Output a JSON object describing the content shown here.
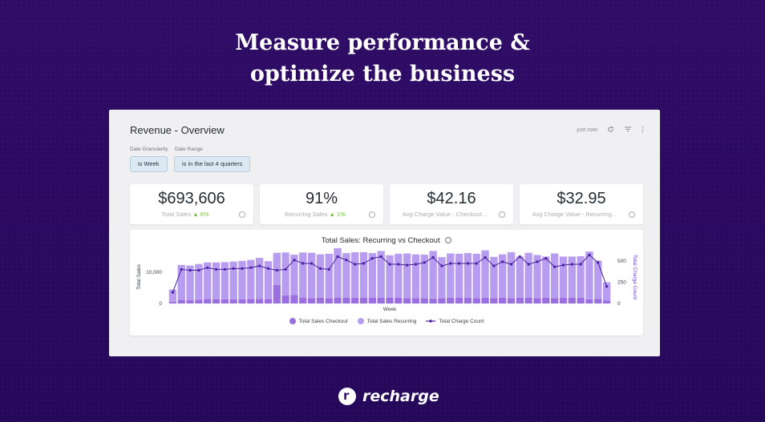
{
  "headline": {
    "line1": "Measure performance &",
    "line2": "optimize the business"
  },
  "dashboard": {
    "title": "Revenue - Overview",
    "last_updated": "just now",
    "filters": [
      {
        "label": "Date Granularity",
        "value": "is Week"
      },
      {
        "label": "Date Range",
        "value": "is in the last 4 quarters"
      }
    ]
  },
  "kpis": [
    {
      "value": "$693,606",
      "label": "Total Sales",
      "delta": "▲ 6%"
    },
    {
      "value": "91%",
      "label": "Recurring Sales",
      "delta": "▲ 1%"
    },
    {
      "value": "$42.16",
      "label": "Avg Charge Value - Checkout…",
      "delta": ""
    },
    {
      "value": "$32.95",
      "label": "Avg Charge Value - Recurring…",
      "delta": ""
    }
  ],
  "chart_data": {
    "type": "bar",
    "title": "Total Sales: Recurring vs Checkout",
    "xlabel": "Week",
    "ylabel": "Total Sales",
    "y2label": "Total Charge Count",
    "y_ticks": [
      "0",
      "10,000"
    ],
    "y2_ticks": [
      "0",
      "250",
      "500"
    ],
    "ylim": [
      0,
      17000
    ],
    "y2lim": [
      0,
      620
    ],
    "legend_position": "bottom-center",
    "colors": {
      "checkout": "#9b6fe0",
      "recurring": "#b89cf0",
      "count": "#4a1fa0"
    },
    "series": [
      {
        "name": "Total Sales Checkout",
        "values": [
          500,
          1200,
          1100,
          1200,
          1400,
          1300,
          1300,
          1300,
          1300,
          1400,
          1500,
          1400,
          6000,
          2600,
          2700,
          1800,
          1700,
          1800,
          1700,
          1900,
          1800,
          1800,
          1800,
          1900,
          1800,
          1800,
          1800,
          1700,
          1700,
          1700,
          1600,
          1700,
          1800,
          1900,
          1800,
          1700,
          1800,
          1700,
          1800,
          1700,
          1800,
          1800,
          1700,
          1900,
          1700,
          1800,
          1800,
          1800,
          1300,
          1500,
          900
        ]
      },
      {
        "name": "Total Sales Recurring",
        "values": [
          4000,
          11200,
          11100,
          11500,
          11800,
          11900,
          12000,
          12200,
          12400,
          12600,
          13200,
          12200,
          10300,
          13800,
          13000,
          14600,
          14600,
          14000,
          14300,
          15900,
          14400,
          14700,
          14700,
          14300,
          15100,
          13700,
          14200,
          14400,
          14100,
          14000,
          15300,
          13200,
          14300,
          14100,
          14400,
          14300,
          15300,
          13300,
          14000,
          14800,
          13300,
          14500,
          13900,
          13200,
          14400,
          13300,
          13300,
          13400,
          15400,
          12300,
          5900
        ]
      },
      {
        "name": "Total Charge Count",
        "values": [
          130,
          400,
          390,
          390,
          420,
          400,
          400,
          410,
          410,
          420,
          440,
          410,
          390,
          400,
          510,
          470,
          470,
          410,
          400,
          550,
          510,
          460,
          470,
          530,
          550,
          460,
          460,
          450,
          460,
          480,
          540,
          440,
          470,
          470,
          470,
          470,
          540,
          440,
          490,
          460,
          550,
          460,
          490,
          530,
          430,
          450,
          460,
          460,
          570,
          480,
          200
        ]
      }
    ]
  },
  "brand": {
    "name": "recharge"
  }
}
